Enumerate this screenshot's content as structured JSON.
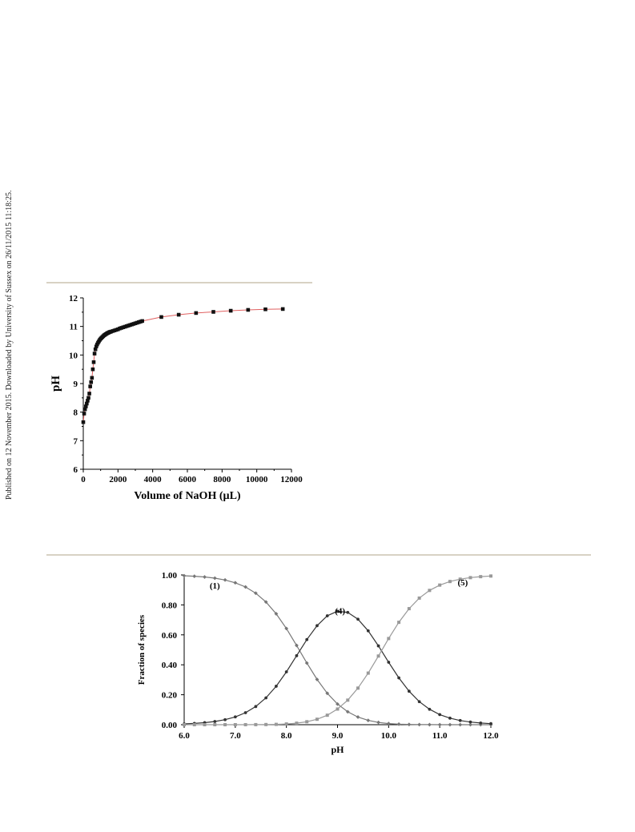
{
  "page": {
    "sidebar_text": "Published on 12 November 2015. Downloaded by University of Sussex on 26/11/2015 11:18:25."
  },
  "chart_data": [
    {
      "type": "scatter",
      "xlabel": "Volume of NaOH (µL)",
      "ylabel": "pH",
      "xlim": [
        0,
        12000
      ],
      "ylim": [
        6,
        12
      ],
      "xticks": [
        "0",
        "2000",
        "4000",
        "6000",
        "8000",
        "10000",
        "12000"
      ],
      "yticks": [
        "6",
        "7",
        "8",
        "9",
        "10",
        "11",
        "12"
      ],
      "grid": false,
      "colors": {
        "points": "#111111",
        "fit_line": "#e06060"
      },
      "series": [
        {
          "marker": "square",
          "x": [
            0,
            50,
            100,
            150,
            200,
            250,
            300,
            350,
            400,
            450,
            500,
            550,
            600,
            650,
            700,
            750,
            800,
            850,
            900,
            950,
            1000,
            1050,
            1100,
            1150,
            1200,
            1250,
            1300,
            1350,
            1400,
            1450,
            1500,
            1550,
            1600,
            1700,
            1800,
            1900,
            2000,
            2100,
            2200,
            2300,
            2400,
            2500,
            2600,
            2700,
            2800,
            2900,
            3000,
            3100,
            3200,
            3300,
            3400,
            4500,
            5500,
            6500,
            7500,
            8500,
            9500,
            10500,
            11500
          ],
          "y": [
            7.65,
            7.95,
            8.1,
            8.2,
            8.3,
            8.4,
            8.5,
            8.65,
            8.9,
            9.05,
            9.2,
            9.5,
            9.75,
            10.05,
            10.2,
            10.3,
            10.37,
            10.43,
            10.48,
            10.53,
            10.57,
            10.6,
            10.63,
            10.66,
            10.69,
            10.71,
            10.73,
            10.75,
            10.77,
            10.78,
            10.8,
            10.81,
            10.82,
            10.84,
            10.86,
            10.88,
            10.9,
            10.93,
            10.95,
            10.97,
            10.99,
            11.01,
            11.03,
            11.05,
            11.07,
            11.09,
            11.11,
            11.13,
            11.15,
            11.17,
            11.19,
            11.33,
            11.41,
            11.47,
            11.51,
            11.55,
            11.58,
            11.6,
            11.61
          ]
        }
      ]
    },
    {
      "type": "line",
      "xlabel": "pH",
      "ylabel": "Fraction of species",
      "xlim": [
        6,
        12
      ],
      "ylim": [
        0,
        1
      ],
      "xticks": [
        "6.0",
        "7.0",
        "8.0",
        "9.0",
        "10.0",
        "11.0",
        "12.0"
      ],
      "yticks": [
        "0.00",
        "0.20",
        "0.40",
        "0.60",
        "0.80",
        "1.00"
      ],
      "grid": false,
      "species_model": {
        "pKa1": 8.26,
        "pKa2": 9.86,
        "x_step": 0.2
      },
      "annotations": [
        {
          "text": "(1)",
          "x": 6.6,
          "y": 0.91
        },
        {
          "text": "(4)",
          "x": 9.05,
          "y": 0.74
        },
        {
          "text": "(5)",
          "x": 11.45,
          "y": 0.93
        }
      ],
      "series": [
        {
          "label": "(1)",
          "species": 1,
          "color": "#777777",
          "marker": "diamond"
        },
        {
          "label": "(4)",
          "species": 4,
          "color": "#333333",
          "marker": "circle"
        },
        {
          "label": "(5)",
          "species": 5,
          "color": "#999999",
          "marker": "square"
        }
      ]
    }
  ]
}
